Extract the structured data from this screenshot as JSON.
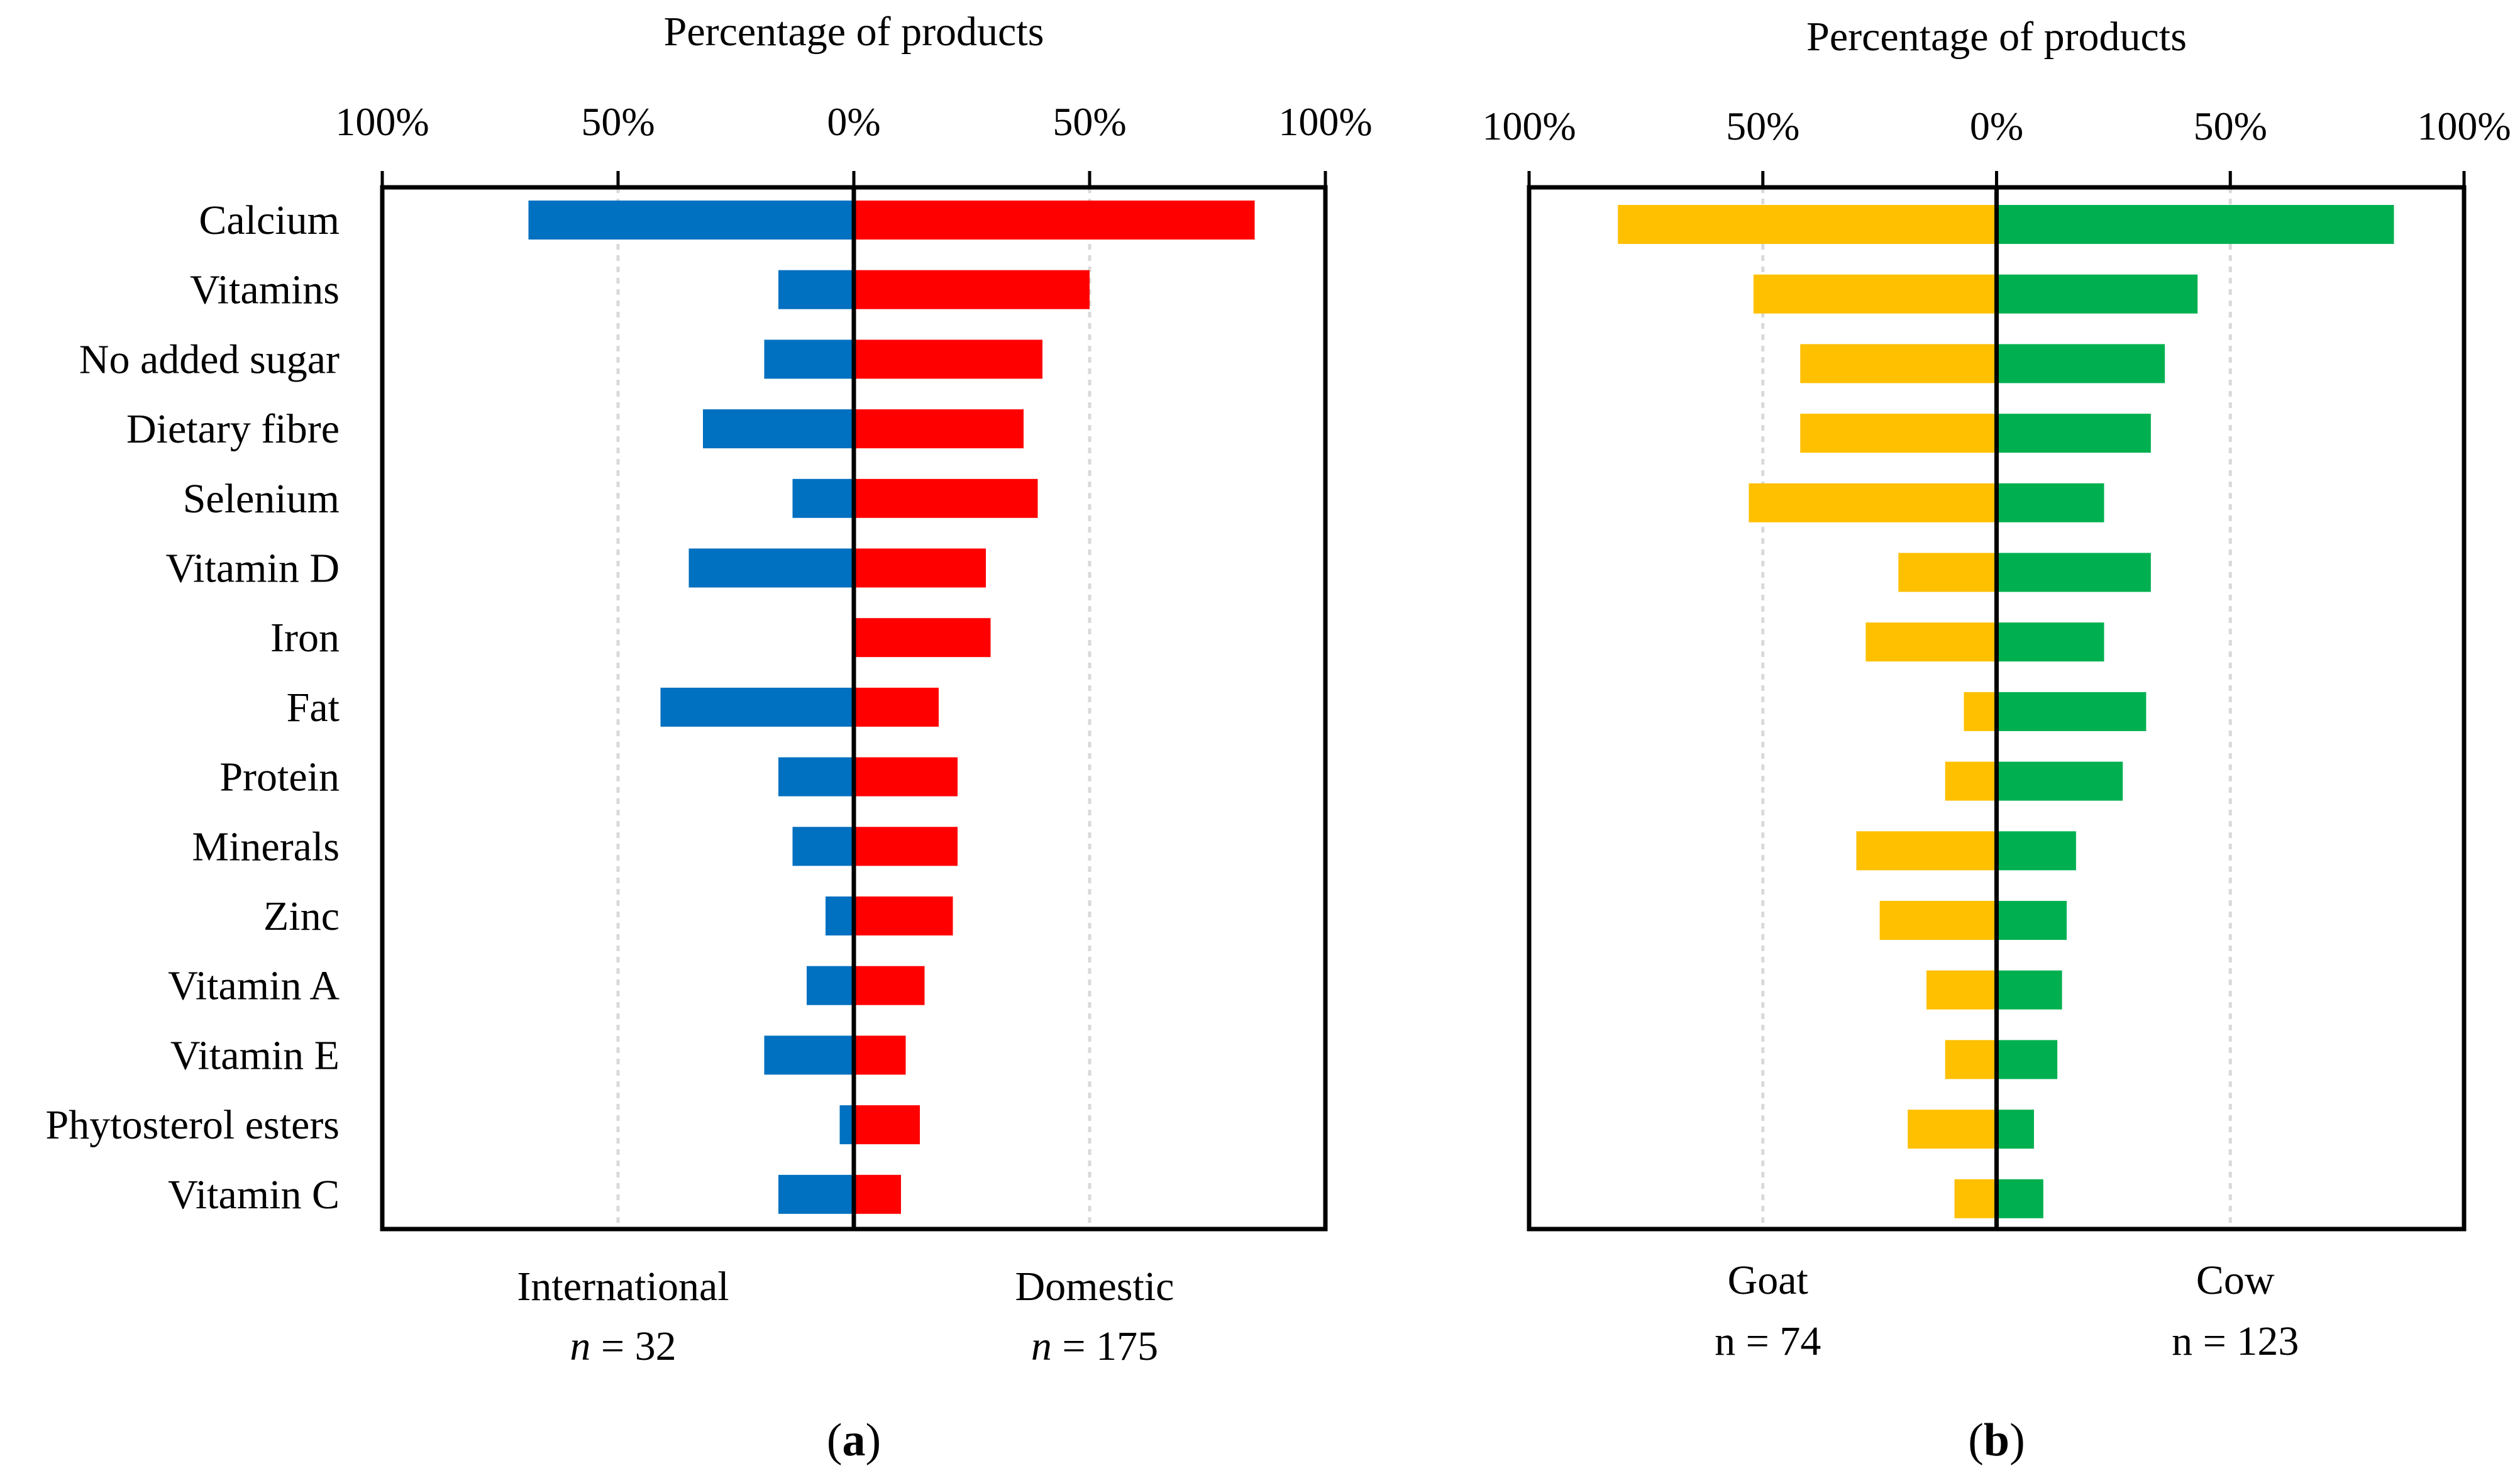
{
  "chart_data": [
    {
      "id": "a",
      "type": "bar",
      "orientation": "horizontal-diverging",
      "title": "Percentage of products",
      "x_ticks": [
        "100%",
        "50%",
        "0%",
        "50%",
        "100%"
      ],
      "xlim": [
        -100,
        100
      ],
      "categories": [
        "Calcium",
        "Vitamins",
        "No added sugar",
        "Dietary fibre",
        "Selenium",
        "Vitamin D",
        "Iron",
        "Fat",
        "Protein",
        "Minerals",
        "Zinc",
        "Vitamin A",
        "Vitamin E",
        "Phytosterol esters",
        "Vitamin C"
      ],
      "series": [
        {
          "name": "International",
          "side": "left",
          "color": "#0070c0",
          "values": [
            69,
            16,
            19,
            32,
            13,
            35,
            0,
            41,
            16,
            13,
            6,
            10,
            19,
            3,
            16
          ]
        },
        {
          "name": "Domestic",
          "side": "right",
          "color": "#ff0000",
          "values": [
            85,
            50,
            40,
            36,
            39,
            28,
            29,
            18,
            22,
            22,
            21,
            15,
            11,
            14,
            10
          ]
        }
      ],
      "group_labels": {
        "left": {
          "name": "International",
          "n_var": "n",
          "n_rest": " = 32"
        },
        "right": {
          "name": "Domestic",
          "n_var": "n",
          "n_rest": " = 175"
        }
      },
      "caption": {
        "open": "(",
        "letter": "a",
        "close": ")"
      }
    },
    {
      "id": "b",
      "type": "bar",
      "orientation": "horizontal-diverging",
      "title": "Percentage of products",
      "x_ticks": [
        "100%",
        "50%",
        "0%",
        "50%",
        "100%"
      ],
      "xlim": [
        -100,
        100
      ],
      "categories": [
        "Calcium",
        "Vitamins",
        "No added sugar",
        "Dietary fibre",
        "Selenium",
        "Vitamin D",
        "Iron",
        "Fat",
        "Protein",
        "Minerals",
        "Zinc",
        "Vitamin A",
        "Vitamin E",
        "Phytosterol esters",
        "Vitamin C"
      ],
      "series": [
        {
          "name": "Goat",
          "side": "left",
          "color": "#ffc000",
          "values": [
            81,
            52,
            42,
            42,
            53,
            21,
            28,
            7,
            11,
            30,
            25,
            15,
            11,
            19,
            9
          ]
        },
        {
          "name": "Cow",
          "side": "right",
          "color": "#00b050",
          "values": [
            85,
            43,
            36,
            33,
            23,
            33,
            23,
            32,
            27,
            17,
            15,
            14,
            13,
            8,
            10
          ]
        }
      ],
      "group_labels": {
        "left": {
          "name": "Goat",
          "n_text": "n = 74"
        },
        "right": {
          "name": "Cow",
          "n_text": "n = 123"
        }
      },
      "caption": {
        "open": "(",
        "letter": "b",
        "close": ")"
      }
    }
  ]
}
